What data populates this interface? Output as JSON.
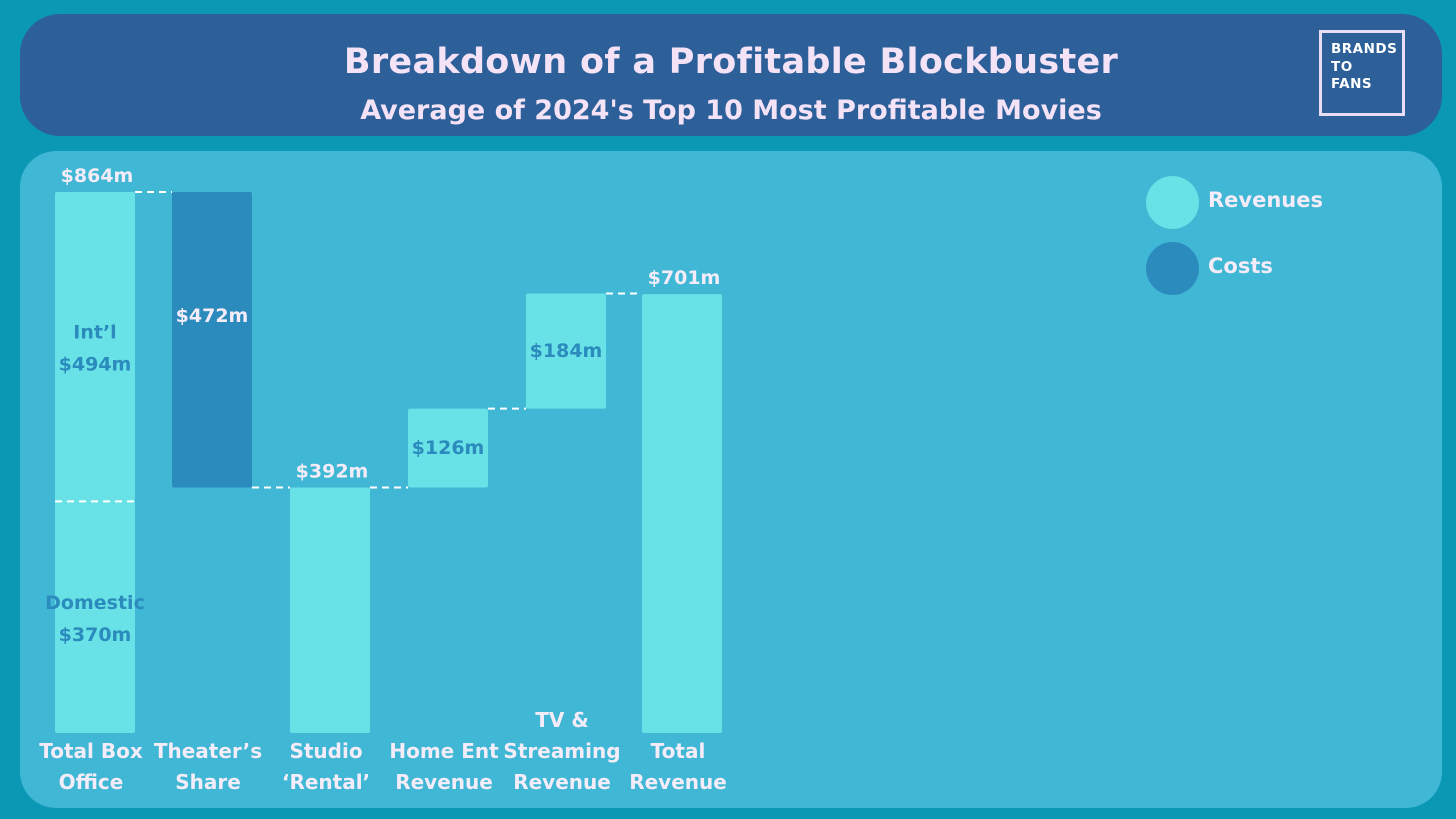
{
  "header": {
    "title": "Breakdown of a Profitable Blockbuster",
    "subtitle": "Average of 2024's Top 10 Most Profitable Movies",
    "logo_lines": [
      "BRANDS",
      "TO",
      "FANS"
    ]
  },
  "colors": {
    "background": "#0a98b5",
    "header": "#2d5f99",
    "panel": "#40b7d4",
    "revenue": "#68e2e6",
    "cost": "#2b8bbd",
    "inner_label": "#2b8bbd",
    "text_light": "#f4ecf8"
  },
  "legend": [
    {
      "label": "Revenues",
      "kind": "revenue"
    },
    {
      "label": "Costs",
      "kind": "cost"
    }
  ],
  "chart_data": {
    "type": "waterfall",
    "ylim": [
      0,
      864
    ],
    "grid": false,
    "legend_position": "top-right",
    "bars": [
      {
        "name": "total-box-office",
        "category": [
          "Total Box",
          "Office"
        ],
        "kind": "revenue",
        "start": 0,
        "end": 864,
        "value_label": "$864m",
        "label_position": "above",
        "segments": [
          {
            "name": "domestic",
            "label": [
              "Domestic",
              "$370m"
            ],
            "start": 0,
            "end": 370
          },
          {
            "name": "international",
            "label": [
              "Int’l",
              "$494m"
            ],
            "start": 370,
            "end": 864
          }
        ]
      },
      {
        "name": "theaters-share",
        "category": [
          "Theater’s",
          "Share"
        ],
        "kind": "cost",
        "start": 392,
        "end": 864,
        "value_label": "$472m",
        "label_position": "inside"
      },
      {
        "name": "studio-rental",
        "category": [
          "Studio",
          "‘Rental’"
        ],
        "kind": "revenue",
        "start": 0,
        "end": 392,
        "value_label": "$392m",
        "label_position": "above"
      },
      {
        "name": "home-ent-revenue",
        "category": [
          "Home Ent",
          "Revenue"
        ],
        "kind": "revenue",
        "start": 392,
        "end": 518,
        "value_label": "$126m",
        "label_position": "inside"
      },
      {
        "name": "tv-streaming-revenue",
        "category": [
          "TV &",
          "Streaming",
          "Revenue"
        ],
        "kind": "revenue",
        "start": 518,
        "end": 702,
        "value_label": "$184m",
        "label_position": "inside"
      },
      {
        "name": "total-revenue",
        "category": [
          "Total",
          "Revenue"
        ],
        "kind": "revenue",
        "start": 0,
        "end": 701,
        "value_label": "$701m",
        "label_position": "above"
      }
    ]
  }
}
